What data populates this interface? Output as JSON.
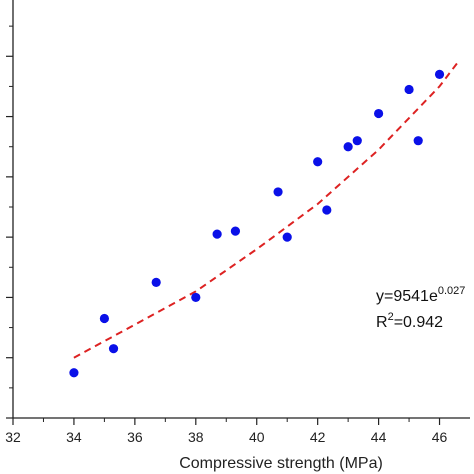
{
  "chart_data": {
    "type": "scatter",
    "title": "",
    "xlabel": "Compressive strength (MPa)",
    "ylabel": "",
    "xlim": [
      32,
      47
    ],
    "ylim": [
      0,
      7
    ],
    "x_ticks": [
      32,
      34,
      36,
      38,
      40,
      42,
      44,
      46
    ],
    "y_ticks": [
      0,
      1,
      2,
      3,
      4,
      5,
      6,
      7
    ],
    "grid": false,
    "series": [
      {
        "color": "#0a10e8",
        "marker": "circle",
        "points": [
          {
            "x": 34.0,
            "y": 0.75
          },
          {
            "x": 35.0,
            "y": 1.65
          },
          {
            "x": 35.3,
            "y": 1.15
          },
          {
            "x": 36.7,
            "y": 2.25
          },
          {
            "x": 38.0,
            "y": 2.0
          },
          {
            "x": 38.7,
            "y": 3.05
          },
          {
            "x": 39.3,
            "y": 3.1
          },
          {
            "x": 40.7,
            "y": 3.75
          },
          {
            "x": 41.0,
            "y": 3.0
          },
          {
            "x": 42.0,
            "y": 4.25
          },
          {
            "x": 42.3,
            "y": 3.45
          },
          {
            "x": 43.0,
            "y": 4.5
          },
          {
            "x": 43.3,
            "y": 4.6
          },
          {
            "x": 44.0,
            "y": 5.05
          },
          {
            "x": 45.0,
            "y": 5.45
          },
          {
            "x": 45.3,
            "y": 4.6
          },
          {
            "x": 46.0,
            "y": 5.7
          }
        ]
      }
    ],
    "fit": {
      "color": "#dd2222",
      "style": "dashed",
      "points": [
        {
          "x": 34.0,
          "y": 1.0
        },
        {
          "x": 36.0,
          "y": 1.55
        },
        {
          "x": 38.0,
          "y": 2.1
        },
        {
          "x": 40.0,
          "y": 2.8
        },
        {
          "x": 42.0,
          "y": 3.55
        },
        {
          "x": 44.0,
          "y": 4.45
        },
        {
          "x": 46.0,
          "y": 5.5
        },
        {
          "x": 46.6,
          "y": 5.9
        }
      ]
    },
    "annotation": {
      "equation_base": "y=9541e",
      "equation_exponent": "0.027",
      "r2_prefix": "R",
      "r2_superscript": "2",
      "r2_value": "=0.942"
    }
  }
}
